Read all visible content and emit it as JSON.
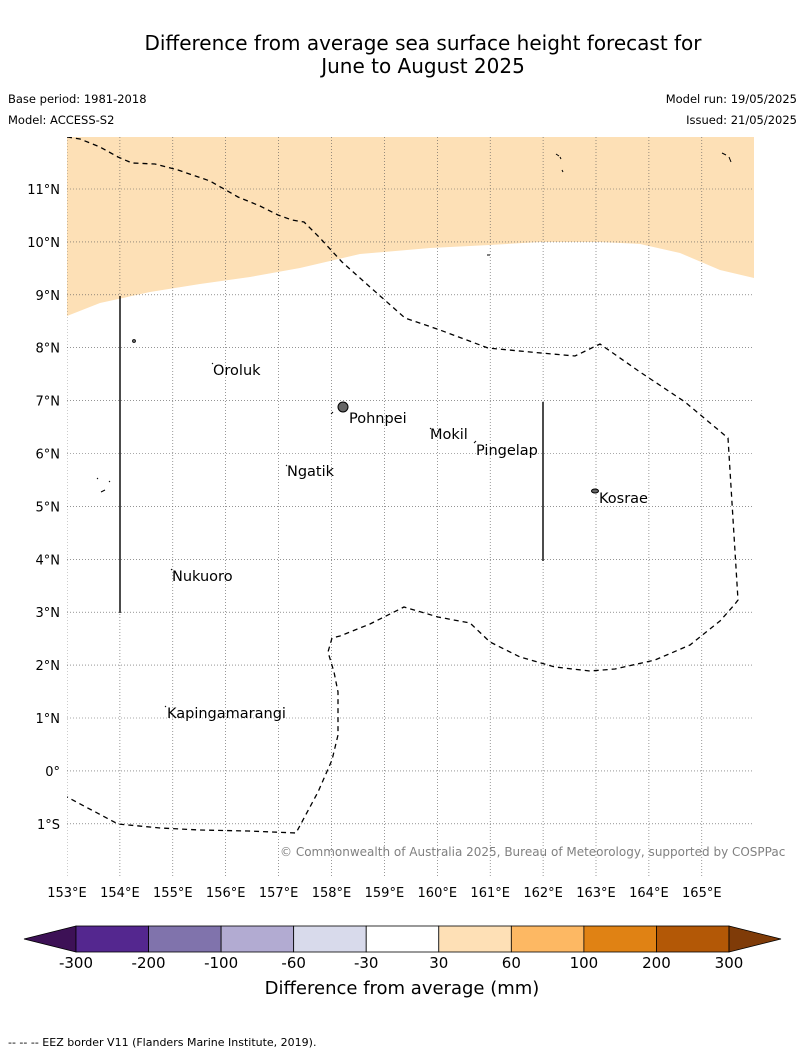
{
  "header": {
    "title_line1": "Difference from average sea surface height forecast for",
    "title_line2": "June to August 2025",
    "base_period": "Base period: 1981-2018",
    "model": "Model: ACCESS-S2",
    "model_run": "Model run: 19/05/2025",
    "issued": "Issued: 21/05/2025"
  },
  "map": {
    "longitude_labels": [
      "153°E",
      "154°E",
      "155°E",
      "156°E",
      "157°E",
      "158°E",
      "159°E",
      "160°E",
      "161°E",
      "162°E",
      "163°E",
      "164°E",
      "165°E"
    ],
    "latitude_labels": [
      "11°N",
      "10°N",
      "9°N",
      "8°N",
      "7°N",
      "6°N",
      "5°N",
      "4°N",
      "3°N",
      "2°N",
      "1°N",
      "0°",
      "1°S"
    ],
    "places": [
      "Oroluk",
      "Pohnpei",
      "Mokil",
      "Pingelap",
      "Ngatik",
      "Kosrae",
      "Nukuoro",
      "Kapingamarangi"
    ],
    "shading_color": "#fde0b6",
    "copyright": "© Commonwealth of Australia 2025, Bureau of Meteorology, supported by COSPPac"
  },
  "colorbar": {
    "title": "Difference from average (mm)",
    "ticks": [
      "-300",
      "-200",
      "-100",
      "-60",
      "-30",
      "30",
      "60",
      "100",
      "200",
      "300"
    ],
    "colors": [
      "#3d1156",
      "#54278f",
      "#8073ac",
      "#b2abd2",
      "#d8daeb",
      "#ffffff",
      "#fee0b6",
      "#fdb863",
      "#e08214",
      "#b35806",
      "#7f3b08"
    ]
  },
  "footer": {
    "legend_note": "--  --  -- EEZ border V11 (Flanders Marine Institute, 2019)."
  }
}
